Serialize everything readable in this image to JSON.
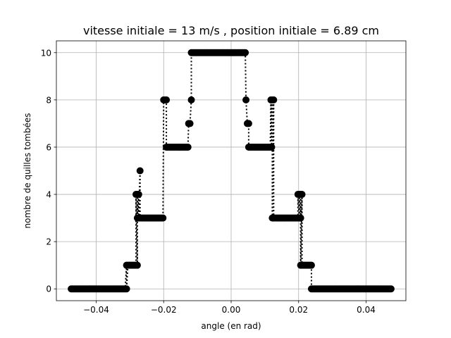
{
  "chart_data": {
    "type": "scatter",
    "title": "vitesse initiale = 13 m/s , position initiale = 6.89 cm",
    "xlabel": "angle (en rad)",
    "ylabel": "nombre de quilles tombées",
    "xlim": [
      -0.0518,
      0.0518
    ],
    "ylim": [
      -0.5,
      10.5
    ],
    "grid": true,
    "x_ticks": [
      {
        "value": -0.04,
        "label": "−0.04"
      },
      {
        "value": -0.02,
        "label": "−0.02"
      },
      {
        "value": 0.0,
        "label": "0.00"
      },
      {
        "value": 0.02,
        "label": "0.02"
      },
      {
        "value": 0.04,
        "label": "0.04"
      }
    ],
    "y_ticks": [
      {
        "value": 0,
        "label": "0"
      },
      {
        "value": 2,
        "label": "2"
      },
      {
        "value": 4,
        "label": "4"
      },
      {
        "value": 6,
        "label": "6"
      },
      {
        "value": 8,
        "label": "8"
      },
      {
        "value": 10,
        "label": "10"
      }
    ],
    "series": [
      {
        "color": "#000000",
        "marker": "circle",
        "line_style": "dotted",
        "segments": [
          {
            "x_start": -0.0474,
            "x_end": -0.031,
            "y": 0
          },
          {
            "x_start": -0.031,
            "x_end": -0.0278,
            "y": 1
          },
          {
            "x_start": -0.0282,
            "x_end": -0.0274,
            "y": 4
          },
          {
            "x_start": -0.027,
            "x_end": -0.027,
            "y": 5
          },
          {
            "x_start": -0.0278,
            "x_end": -0.02,
            "y": 3
          },
          {
            "x_start": -0.02,
            "x_end": -0.0192,
            "y": 8
          },
          {
            "x_start": -0.0192,
            "x_end": -0.0126,
            "y": 6
          },
          {
            "x_start": -0.0126,
            "x_end": -0.0122,
            "y": 7
          },
          {
            "x_start": -0.0118,
            "x_end": -0.0118,
            "y": 8
          },
          {
            "x_start": -0.0118,
            "x_end": 0.0044,
            "y": 10
          },
          {
            "x_start": 0.0044,
            "x_end": 0.0044,
            "y": 8
          },
          {
            "x_start": 0.0048,
            "x_end": 0.0052,
            "y": 7
          },
          {
            "x_start": 0.0052,
            "x_end": 0.0118,
            "y": 6
          },
          {
            "x_start": 0.0118,
            "x_end": 0.0126,
            "y": 8
          },
          {
            "x_start": 0.0122,
            "x_end": 0.0206,
            "y": 3
          },
          {
            "x_start": 0.0198,
            "x_end": 0.021,
            "y": 4
          },
          {
            "x_start": 0.0206,
            "x_end": 0.0238,
            "y": 1
          },
          {
            "x_start": 0.0238,
            "x_end": 0.0474,
            "y": 0
          }
        ]
      }
    ]
  }
}
